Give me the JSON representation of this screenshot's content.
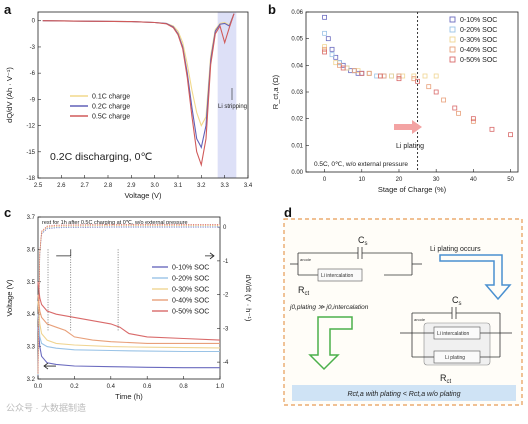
{
  "figure": {
    "panel_a": {
      "label": "a",
      "chart_data": {
        "type": "line",
        "xlabel": "Voltage (V)",
        "ylabel": "dQ/dV (Ah · V⁻¹)",
        "xlim": [
          2.5,
          3.4
        ],
        "ylim": [
          -18,
          1
        ],
        "xticks": [
          "2.5",
          "2.6",
          "2.7",
          "2.8",
          "2.9",
          "3.0",
          "3.1",
          "3.2",
          "3.3",
          "3.4"
        ],
        "yticks": [
          "0",
          "-3",
          "-6",
          "-9",
          "-12",
          "-15",
          "-18"
        ],
        "series": [
          {
            "name": "0.1C charge",
            "color": "#f2d98c",
            "x": [
              2.52,
              2.7,
              2.9,
              3.0,
              3.05,
              3.08,
              3.1,
              3.12,
              3.14,
              3.16,
              3.18,
              3.2,
              3.22,
              3.24,
              3.26,
              3.28,
              3.3,
              3.32,
              3.34
            ],
            "y": [
              0.0,
              -0.05,
              -0.1,
              -0.2,
              -0.3,
              -0.6,
              -1.2,
              -2.5,
              -5.0,
              -8.0,
              -10.5,
              -12.0,
              -11.0,
              -4.0,
              -1.0,
              -0.3,
              -0.2,
              -0.5,
              0.8
            ]
          },
          {
            "name": "0.2C charge",
            "color": "#6060b8",
            "x": [
              2.52,
              2.7,
              2.9,
              3.0,
              3.05,
              3.08,
              3.1,
              3.12,
              3.14,
              3.16,
              3.18,
              3.2,
              3.22,
              3.24,
              3.26,
              3.28,
              3.3,
              3.32,
              3.34
            ],
            "y": [
              0.0,
              -0.05,
              -0.1,
              -0.2,
              -0.3,
              -0.7,
              -1.5,
              -3.0,
              -6.0,
              -10.0,
              -13.5,
              -14.5,
              -12.0,
              -4.5,
              -1.2,
              -0.4,
              -0.3,
              -0.6,
              0.8
            ]
          },
          {
            "name": "0.5C charge",
            "color": "#d05a5a",
            "x": [
              2.52,
              2.7,
              2.9,
              3.0,
              3.05,
              3.08,
              3.1,
              3.12,
              3.14,
              3.16,
              3.18,
              3.2,
              3.22,
              3.24,
              3.26,
              3.28,
              3.3,
              3.32,
              3.34
            ],
            "y": [
              0.0,
              -0.05,
              -0.1,
              -0.2,
              -0.35,
              -0.8,
              -1.6,
              -3.2,
              -6.5,
              -11.0,
              -15.0,
              -16.5,
              -13.5,
              -5.0,
              -1.5,
              -0.6,
              -2.5,
              -0.8,
              0.8
            ]
          }
        ],
        "annotations": [
          "Li stripping",
          "0.2C discharging, 0℃"
        ],
        "legend": "center-left"
      }
    },
    "panel_b": {
      "label": "b",
      "chart_data": {
        "type": "scatter",
        "xlabel": "Stage of Charge (%)",
        "ylabel": "R_ct,a (Ω)",
        "xlim": [
          -5,
          52
        ],
        "ylim": [
          0.0,
          0.06
        ],
        "xticks": [
          "0",
          "10",
          "20",
          "30",
          "40",
          "50"
        ],
        "yticks": [
          "0.00",
          "0.01",
          "0.02",
          "0.03",
          "0.04",
          "0.05",
          "0.06"
        ],
        "series": [
          {
            "name": "0-10% SOC",
            "color": "#6b6bbf",
            "x": [
              0,
              1,
              2,
              3,
              4,
              5,
              6,
              7,
              8,
              9,
              10
            ],
            "y": [
              0.058,
              0.05,
              0.046,
              0.043,
              0.041,
              0.04,
              0.039,
              0.038,
              0.038,
              0.037,
              0.037
            ]
          },
          {
            "name": "0-20% SOC",
            "color": "#9ac3e6",
            "x": [
              0,
              2,
              4,
              6,
              8,
              10,
              12,
              14,
              16,
              18,
              20
            ],
            "y": [
              0.052,
              0.044,
              0.041,
              0.039,
              0.038,
              0.037,
              0.037,
              0.036,
              0.036,
              0.036,
              0.036
            ]
          },
          {
            "name": "0-30% SOC",
            "color": "#f0d592",
            "x": [
              0,
              3,
              6,
              9,
              12,
              15,
              18,
              21,
              24,
              27,
              30
            ],
            "y": [
              0.047,
              0.041,
              0.039,
              0.038,
              0.037,
              0.036,
              0.036,
              0.036,
              0.036,
              0.036,
              0.036
            ]
          },
          {
            "name": "0-40% SOC",
            "color": "#e8a07a",
            "x": [
              0,
              4,
              8,
              12,
              16,
              20,
              24,
              28,
              32,
              36,
              40
            ],
            "y": [
              0.046,
              0.04,
              0.038,
              0.037,
              0.036,
              0.036,
              0.035,
              0.032,
              0.027,
              0.022,
              0.019
            ]
          },
          {
            "name": "0-50% SOC",
            "color": "#d96a6a",
            "x": [
              0,
              5,
              10,
              15,
              20,
              25,
              30,
              35,
              40,
              45,
              50
            ],
            "y": [
              0.045,
              0.039,
              0.037,
              0.036,
              0.035,
              0.034,
              0.03,
              0.024,
              0.02,
              0.016,
              0.014
            ]
          }
        ],
        "annotations": [
          "Li plating",
          "0.5C, 0℃, w/o external pressure"
        ],
        "vline_x": 25,
        "legend": "top-right"
      }
    },
    "panel_c": {
      "label": "c",
      "chart_data": {
        "type": "line",
        "xlabel": "Time (h)",
        "ylabel": "Voltage (V)",
        "ylabel_right": "dV/dt (V · h⁻¹)",
        "xlim": [
          0,
          1.0
        ],
        "ylim": [
          3.2,
          3.7
        ],
        "ylim_right": [
          -4.5,
          0.3
        ],
        "xticks": [
          "0.0",
          "0.2",
          "0.4",
          "0.6",
          "0.8",
          "1.0"
        ],
        "yticks": [
          "3.2",
          "3.3",
          "3.4",
          "3.5",
          "3.6",
          "3.7"
        ],
        "yticks_right": [
          "0",
          "-1",
          "-2",
          "-3",
          "-4"
        ],
        "title": "rest for 1h after 0.5C charging at 0℃, w/o external pressure",
        "series": [
          {
            "name": "0-10% SOC",
            "color": "#6b6bbf",
            "x": [
              0,
              0.01,
              0.02,
              0.05,
              0.1,
              0.2,
              0.4,
              0.6,
              0.8,
              1.0
            ],
            "y": [
              3.36,
              3.3,
              3.27,
              3.25,
              3.245,
              3.24,
              3.238,
              3.236,
              3.235,
              3.235
            ]
          },
          {
            "name": "0-20% SOC",
            "color": "#9ac3e6",
            "x": [
              0,
              0.01,
              0.02,
              0.05,
              0.1,
              0.2,
              0.4,
              0.6,
              0.8,
              1.0
            ],
            "y": [
              3.4,
              3.33,
              3.31,
              3.3,
              3.295,
              3.29,
              3.288,
              3.286,
              3.285,
              3.285
            ]
          },
          {
            "name": "0-30% SOC",
            "color": "#f0d592",
            "x": [
              0,
              0.01,
              0.02,
              0.05,
              0.1,
              0.2,
              0.4,
              0.6,
              0.8,
              1.0
            ],
            "y": [
              3.44,
              3.37,
              3.34,
              3.32,
              3.31,
              3.305,
              3.3,
              3.298,
              3.297,
              3.296
            ]
          },
          {
            "name": "0-40% SOC",
            "color": "#e8a07a",
            "x": [
              0,
              0.01,
              0.02,
              0.05,
              0.1,
              0.15,
              0.2,
              0.3,
              0.4,
              0.6,
              0.8,
              1.0
            ],
            "y": [
              3.46,
              3.41,
              3.39,
              3.37,
              3.36,
              3.35,
              3.33,
              3.32,
              3.315,
              3.31,
              3.31,
              3.31
            ]
          },
          {
            "name": "0-50% SOC",
            "color": "#d96a6a",
            "x": [
              0,
              0.01,
              0.02,
              0.05,
              0.1,
              0.2,
              0.3,
              0.4,
              0.45,
              0.5,
              0.6,
              0.8,
              1.0
            ],
            "y": [
              3.5,
              3.45,
              3.43,
              3.41,
              3.4,
              3.39,
              3.38,
              3.37,
              3.36,
              3.34,
              3.33,
              3.325,
              3.32
            ]
          }
        ],
        "legend": "center-right"
      }
    },
    "panel_d": {
      "label": "d",
      "cs": "C",
      "cs_sub": "s",
      "rct": "R",
      "rct_sub": "ct",
      "anode": "anode",
      "li_intercalation": "Li intercalation",
      "li_plating_box": "Li plating",
      "li_plating_occurs": "Li plating occurs",
      "j_relation": "j0,plating ≫ j0,intercalation",
      "bottom_relation": "Rct,a with plating < Rct,a w/o plating"
    },
    "watermark": "公众号 · 大数据制造"
  }
}
